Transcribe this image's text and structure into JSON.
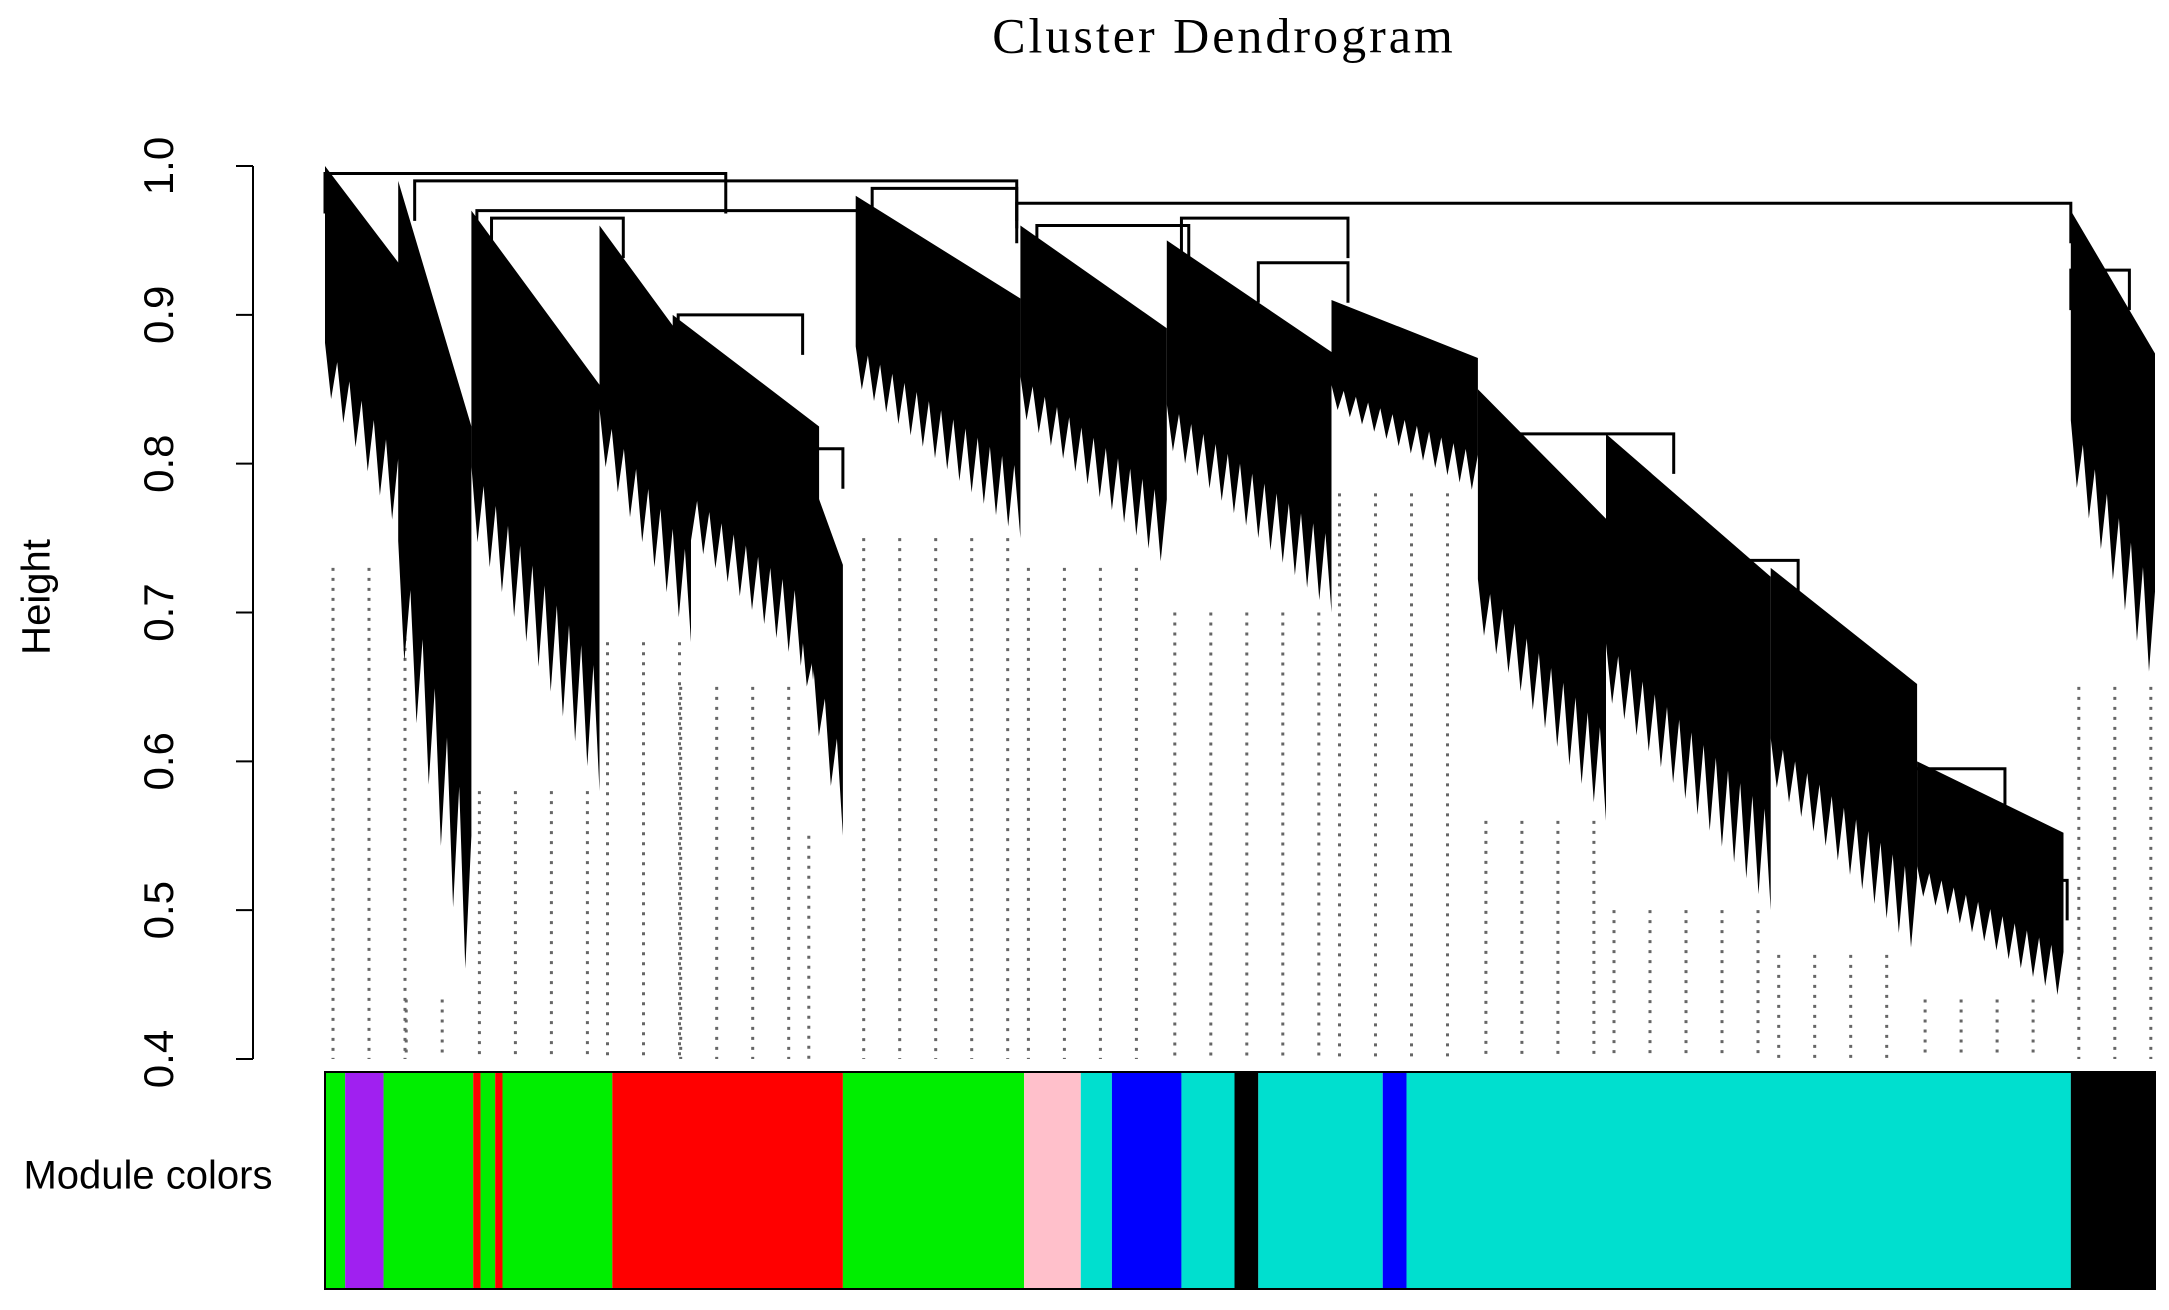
{
  "chart_data": {
    "type": "dendrogram",
    "title": "Cluster Dendrogram",
    "y_label": "Height",
    "color_bar_label": "Module colors",
    "ylim": [
      0.4,
      1.0
    ],
    "yticks": [
      0.4,
      0.5,
      0.6,
      0.7,
      0.8,
      0.9,
      {
        "value": 1,
        "label": "1.0"
      }
    ],
    "xlim": [
      0,
      100
    ],
    "merges": [
      {
        "x": [
          0,
          21.9
        ],
        "height": 0.995
      },
      {
        "x": [
          4.9,
          37.8
        ],
        "height": 0.99
      },
      {
        "x": [
          37.8,
          95.4
        ],
        "height": 0.975
      },
      {
        "x": [
          8.3,
          29.9
        ],
        "height": 0.97
      },
      {
        "x": [
          9.1,
          16.3
        ],
        "height": 0.965
      },
      {
        "x": [
          19.3,
          26.1
        ],
        "height": 0.9
      },
      {
        "x": [
          25.3,
          28.3
        ],
        "height": 0.81
      },
      {
        "x": [
          29.9,
          37.8
        ],
        "height": 0.985
      },
      {
        "x": [
          38.9,
          47.2
        ],
        "height": 0.96
      },
      {
        "x": [
          46.8,
          55.9
        ],
        "height": 0.965
      },
      {
        "x": [
          51,
          55.9
        ],
        "height": 0.935
      },
      {
        "x": [
          63.1,
          73.7
        ],
        "height": 0.82
      },
      {
        "x": [
          73.7,
          80.5
        ],
        "height": 0.735
      },
      {
        "x": [
          86.5,
          91.8
        ],
        "height": 0.595
      },
      {
        "x": [
          91.8,
          95.2
        ],
        "height": 0.52
      },
      {
        "x": [
          95.4,
          98.6
        ],
        "height": 0.93
      }
    ],
    "leaf_blocks": [
      {
        "x": [
          0,
          5
        ],
        "top": 1.0,
        "bottom": 0.73
      },
      {
        "x": [
          4,
          8
        ],
        "top": 0.99,
        "bottom": 0.44
      },
      {
        "x": [
          8,
          15
        ],
        "top": 0.97,
        "bottom": 0.58
      },
      {
        "x": [
          15,
          20
        ],
        "top": 0.96,
        "bottom": 0.68
      },
      {
        "x": [
          19,
          27
        ],
        "top": 0.9,
        "bottom": 0.65
      },
      {
        "x": [
          26,
          28.3
        ],
        "top": 0.81,
        "bottom": 0.55
      },
      {
        "x": [
          29,
          38
        ],
        "top": 0.98,
        "bottom": 0.75
      },
      {
        "x": [
          38,
          46
        ],
        "top": 0.96,
        "bottom": 0.73
      },
      {
        "x": [
          46,
          55
        ],
        "top": 0.95,
        "bottom": 0.7
      },
      {
        "x": [
          55,
          63
        ],
        "top": 0.91,
        "bottom": 0.78
      },
      {
        "x": [
          63,
          70
        ],
        "top": 0.85,
        "bottom": 0.56
      },
      {
        "x": [
          70,
          79
        ],
        "top": 0.82,
        "bottom": 0.5
      },
      {
        "x": [
          79,
          87
        ],
        "top": 0.73,
        "bottom": 0.47
      },
      {
        "x": [
          87,
          95
        ],
        "top": 0.6,
        "bottom": 0.44
      },
      {
        "x": [
          95.4,
          100
        ],
        "top": 0.97,
        "bottom": 0.65
      }
    ],
    "module_colors": [
      {
        "color": "#00ee00",
        "x": [
          0,
          1.1
        ]
      },
      {
        "color": "#a020f0",
        "x": [
          1.1,
          3.2
        ]
      },
      {
        "color": "#00ee00",
        "x": [
          3.2,
          8.1
        ]
      },
      {
        "color": "#ff0000",
        "x": [
          8.1,
          8.5
        ]
      },
      {
        "color": "#00ee00",
        "x": [
          8.5,
          9.3
        ]
      },
      {
        "color": "#ff0000",
        "x": [
          9.3,
          9.7
        ]
      },
      {
        "color": "#00ee00",
        "x": [
          9.7,
          15.7
        ]
      },
      {
        "color": "#ff0000",
        "x": [
          15.7,
          28.3
        ]
      },
      {
        "color": "#00ee00",
        "x": [
          28.3,
          38.2
        ]
      },
      {
        "color": "#ffc0cb",
        "x": [
          38.2,
          41.3
        ]
      },
      {
        "color": "#00dfcf",
        "x": [
          41.3,
          43
        ]
      },
      {
        "color": "#0000ff",
        "x": [
          43,
          46.8
        ]
      },
      {
        "color": "#00dfcf",
        "x": [
          46.8,
          49.7
        ]
      },
      {
        "color": "#000000",
        "x": [
          49.7,
          51
        ]
      },
      {
        "color": "#00dfcf",
        "x": [
          51,
          57.8
        ]
      },
      {
        "color": "#0000ff",
        "x": [
          57.8,
          59.1
        ]
      },
      {
        "color": "#00dfcf",
        "x": [
          59.1,
          95.4
        ]
      },
      {
        "color": "#000000",
        "x": [
          95.4,
          100
        ]
      }
    ]
  }
}
